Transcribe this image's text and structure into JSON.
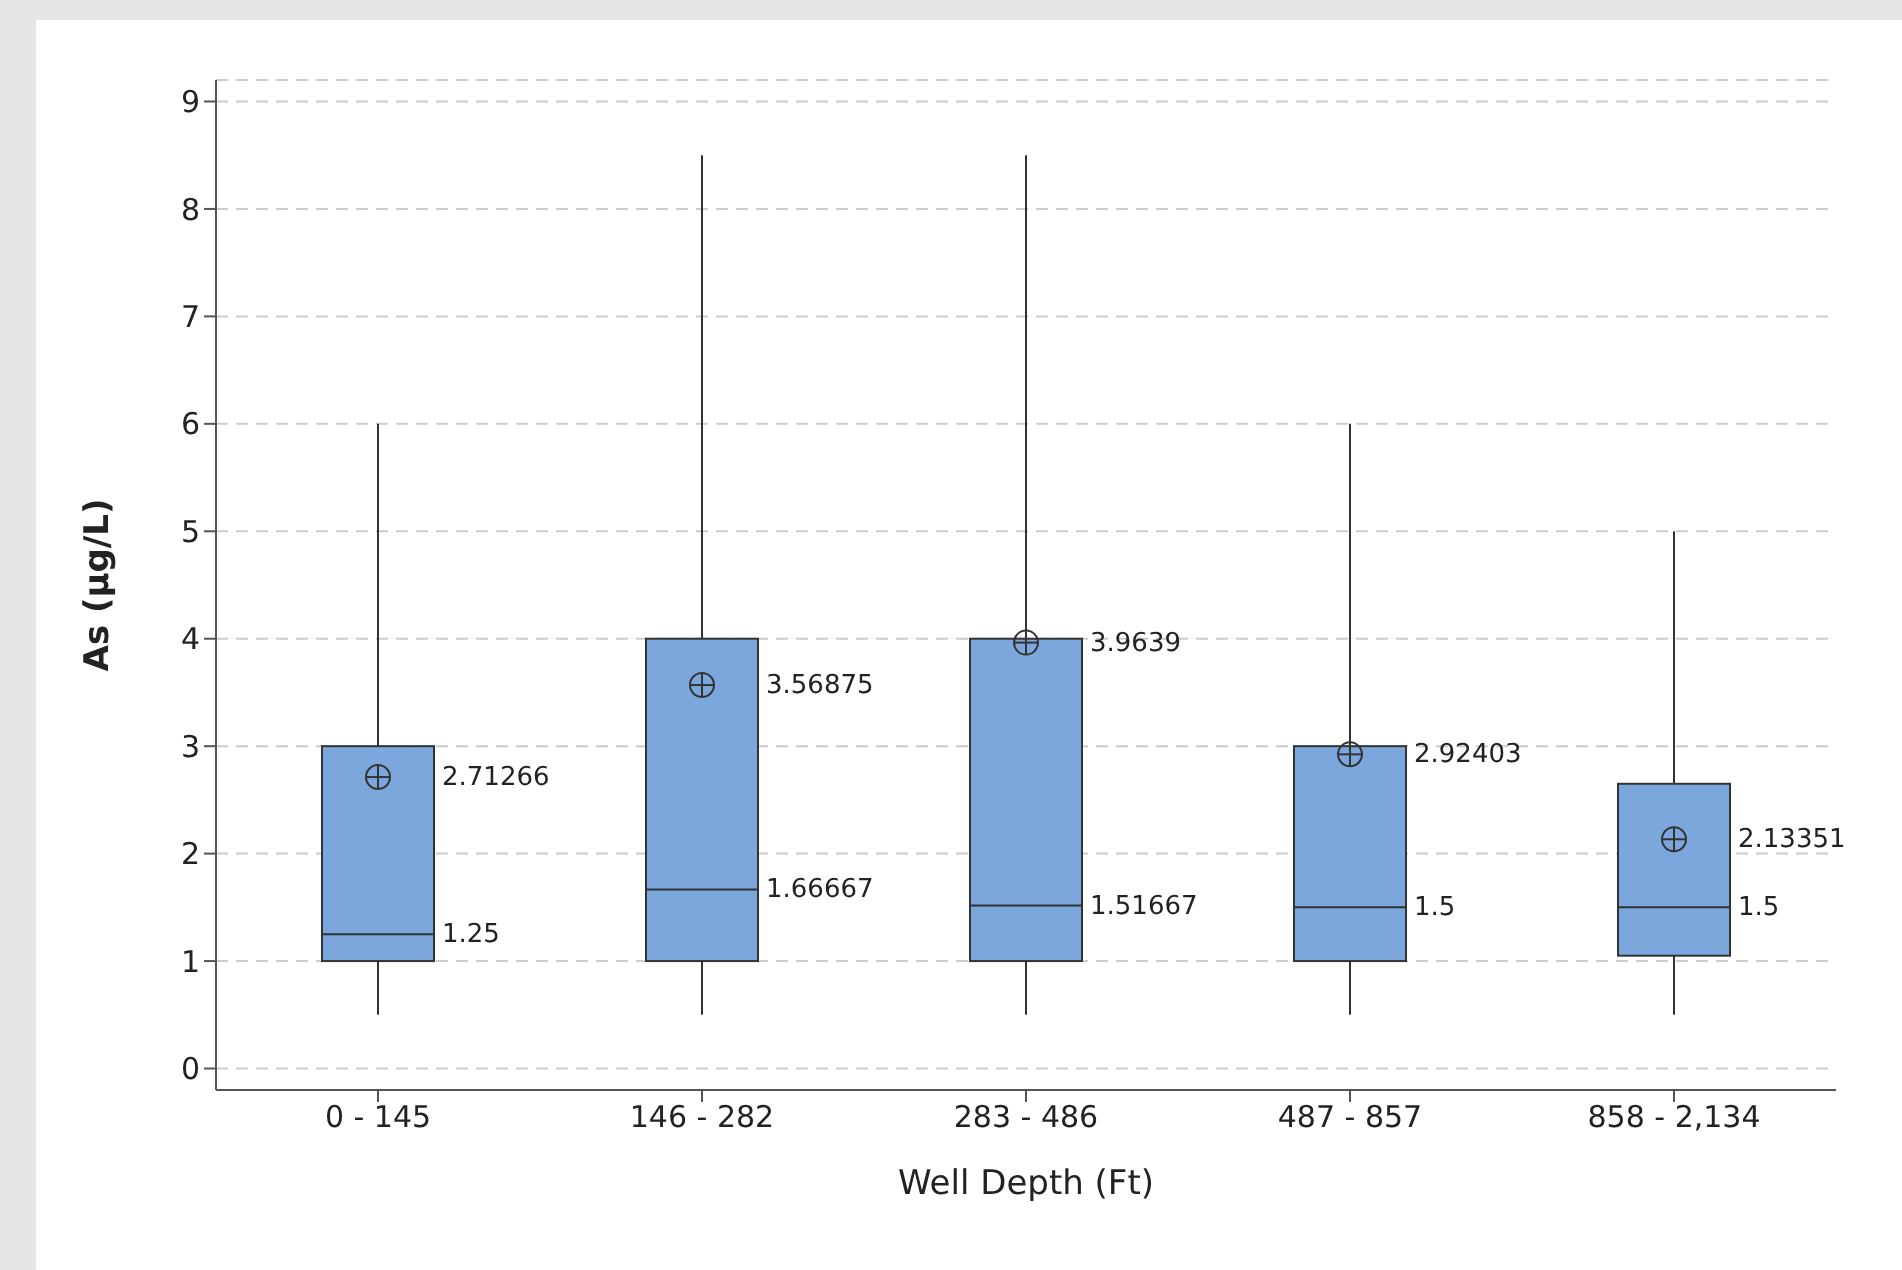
{
  "chart_data": {
    "type": "box",
    "xlabel": "Well Depth (Ft)",
    "ylabel": "As (μg/L)",
    "categories": [
      "0 - 145",
      "146 - 282",
      "283 - 486",
      "487 - 857",
      "858 - 2,134"
    ],
    "boxes": [
      {
        "low": 0.5,
        "q1": 1,
        "median": 1.25,
        "q3": 3,
        "high": 6,
        "mean": 2.71266
      },
      {
        "low": 0.5,
        "q1": 1,
        "median": 1.66667,
        "q3": 4,
        "high": 8.5,
        "mean": 3.56875
      },
      {
        "low": 0.5,
        "q1": 1,
        "median": 1.51667,
        "q3": 4,
        "high": 8.5,
        "mean": 3.9639
      },
      {
        "low": 0.5,
        "q1": 1,
        "median": 1.5,
        "q3": 3,
        "high": 6,
        "mean": 2.92403
      },
      {
        "low": 0.5,
        "q1": 1.05,
        "median": 1.5,
        "q3": 2.65,
        "high": 5,
        "mean": 2.13351
      }
    ],
    "annotations": [
      {
        "text": "1.25",
        "x": "0 - 145",
        "y": 1.25
      },
      "2.71266",
      {
        "text": "1.66667",
        "x": "146 - 282",
        "y": 1.66667
      },
      "3.56875",
      {
        "text": "1.51667",
        "x": "283 - 486",
        "y": 1.51667
      },
      "3.9639",
      {
        "text": "1.5",
        "x": "487 - 857",
        "y": 1.5
      },
      "2.92403",
      {
        "text": "1.5",
        "x": "858 - 2,134",
        "y": 1.5
      },
      "2.13351"
    ],
    "color": "#7ba7dc",
    "grid": "y",
    "ylim": [
      -0.2,
      9.2
    ],
    "yticks": [
      0,
      1,
      2,
      3,
      4,
      5,
      6,
      7,
      8,
      9
    ]
  }
}
